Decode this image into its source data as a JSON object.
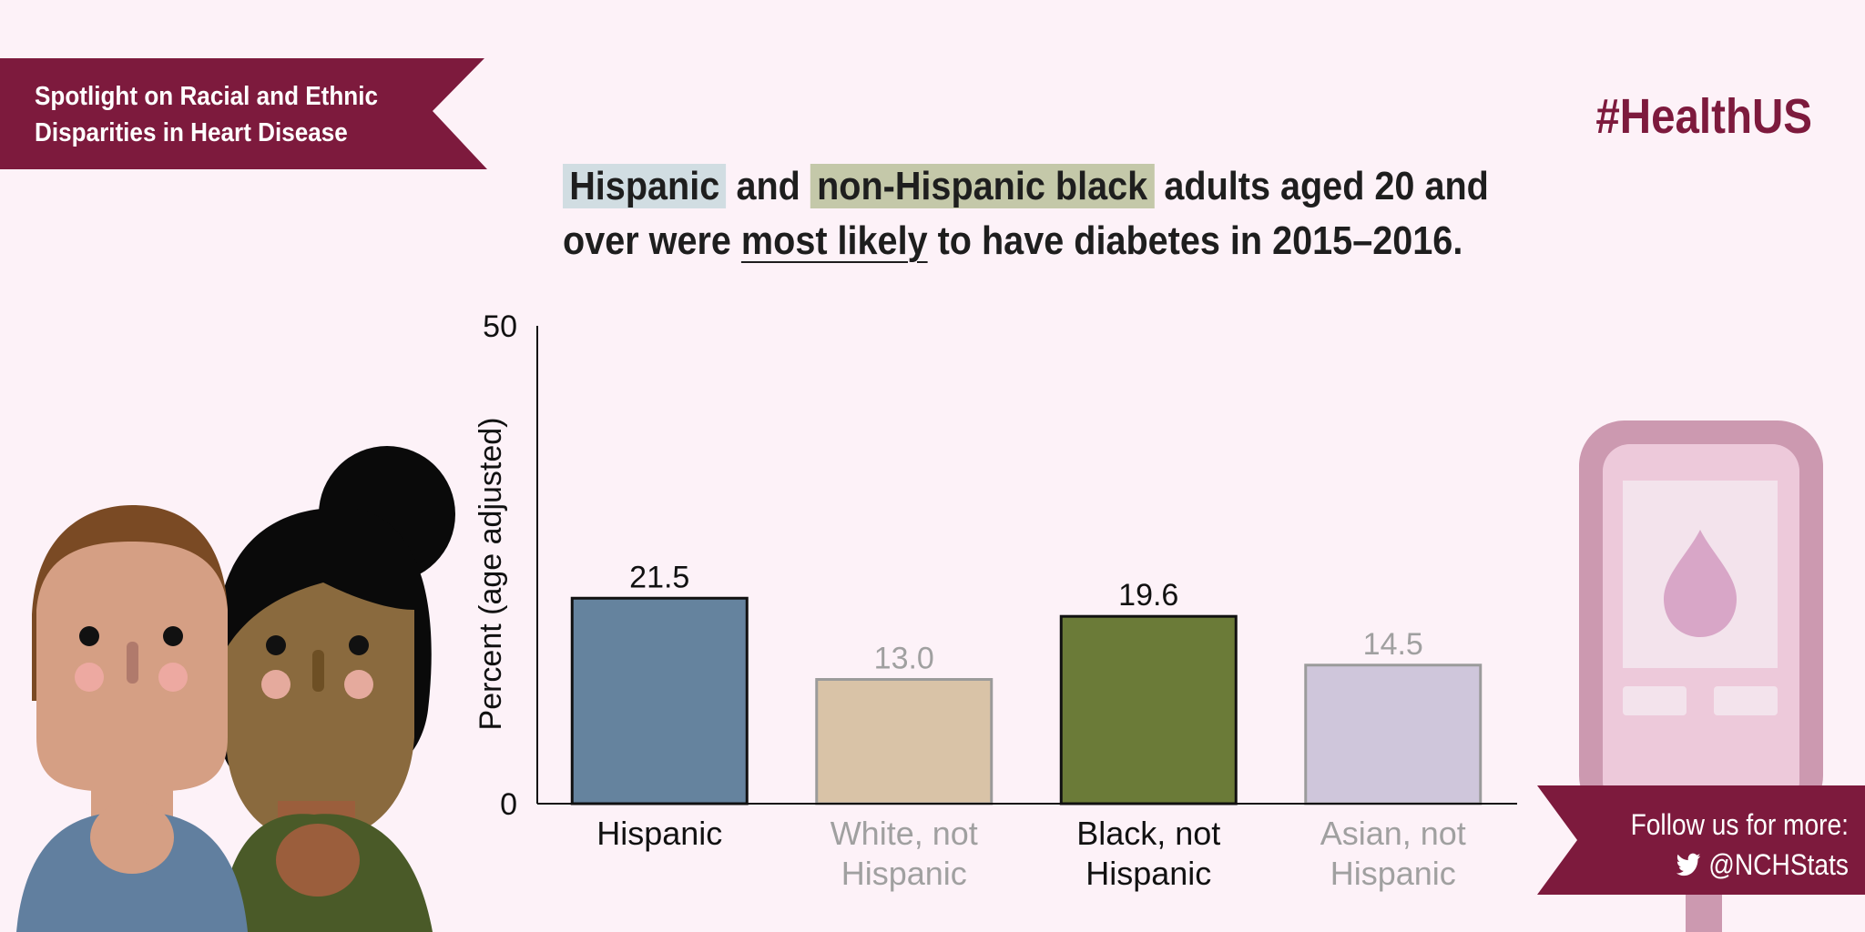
{
  "banner": {
    "line1": "Spotlight on Racial and Ethnic",
    "line2": "Disparities in Heart Disease"
  },
  "hashtag": "#HealthUS",
  "headline": {
    "hispanic": "Hispanic",
    "and": " and ",
    "black": "non-Hispanic black",
    "rest1": " adults aged 20 and",
    "line2_start": "over were ",
    "most_likely": "most likely",
    "line2_end": " to have diabetes in 2015–2016."
  },
  "follow": {
    "line1": "Follow us for more:",
    "handle": "@NCHStats",
    "icon": "twitter-icon"
  },
  "colors": {
    "maroon": "#7d1a3d",
    "background": "#fdf2f8"
  },
  "chart_data": {
    "type": "bar",
    "ylabel": "Percent (age adjusted)",
    "ylim": [
      0,
      50
    ],
    "yticks": [
      "0",
      "50"
    ],
    "categories": [
      [
        "Hispanic"
      ],
      [
        "White, not",
        "Hispanic"
      ],
      [
        "Black, not",
        "Hispanic"
      ],
      [
        "Asian, not",
        "Hispanic"
      ]
    ],
    "values": [
      21.5,
      13.0,
      19.6,
      14.5
    ],
    "value_labels": [
      "21.5",
      "13.0",
      "19.6",
      "14.5"
    ],
    "bar_colors": [
      "#65839e",
      "#d9c3a7",
      "#6b7b38",
      "#cfc6db"
    ],
    "bar_strokes": [
      "#111111",
      "#9b9b9b",
      "#111111",
      "#9b9b9b"
    ],
    "label_colors": [
      "#111111",
      "#a0a0a0",
      "#111111",
      "#a0a0a0"
    ]
  }
}
